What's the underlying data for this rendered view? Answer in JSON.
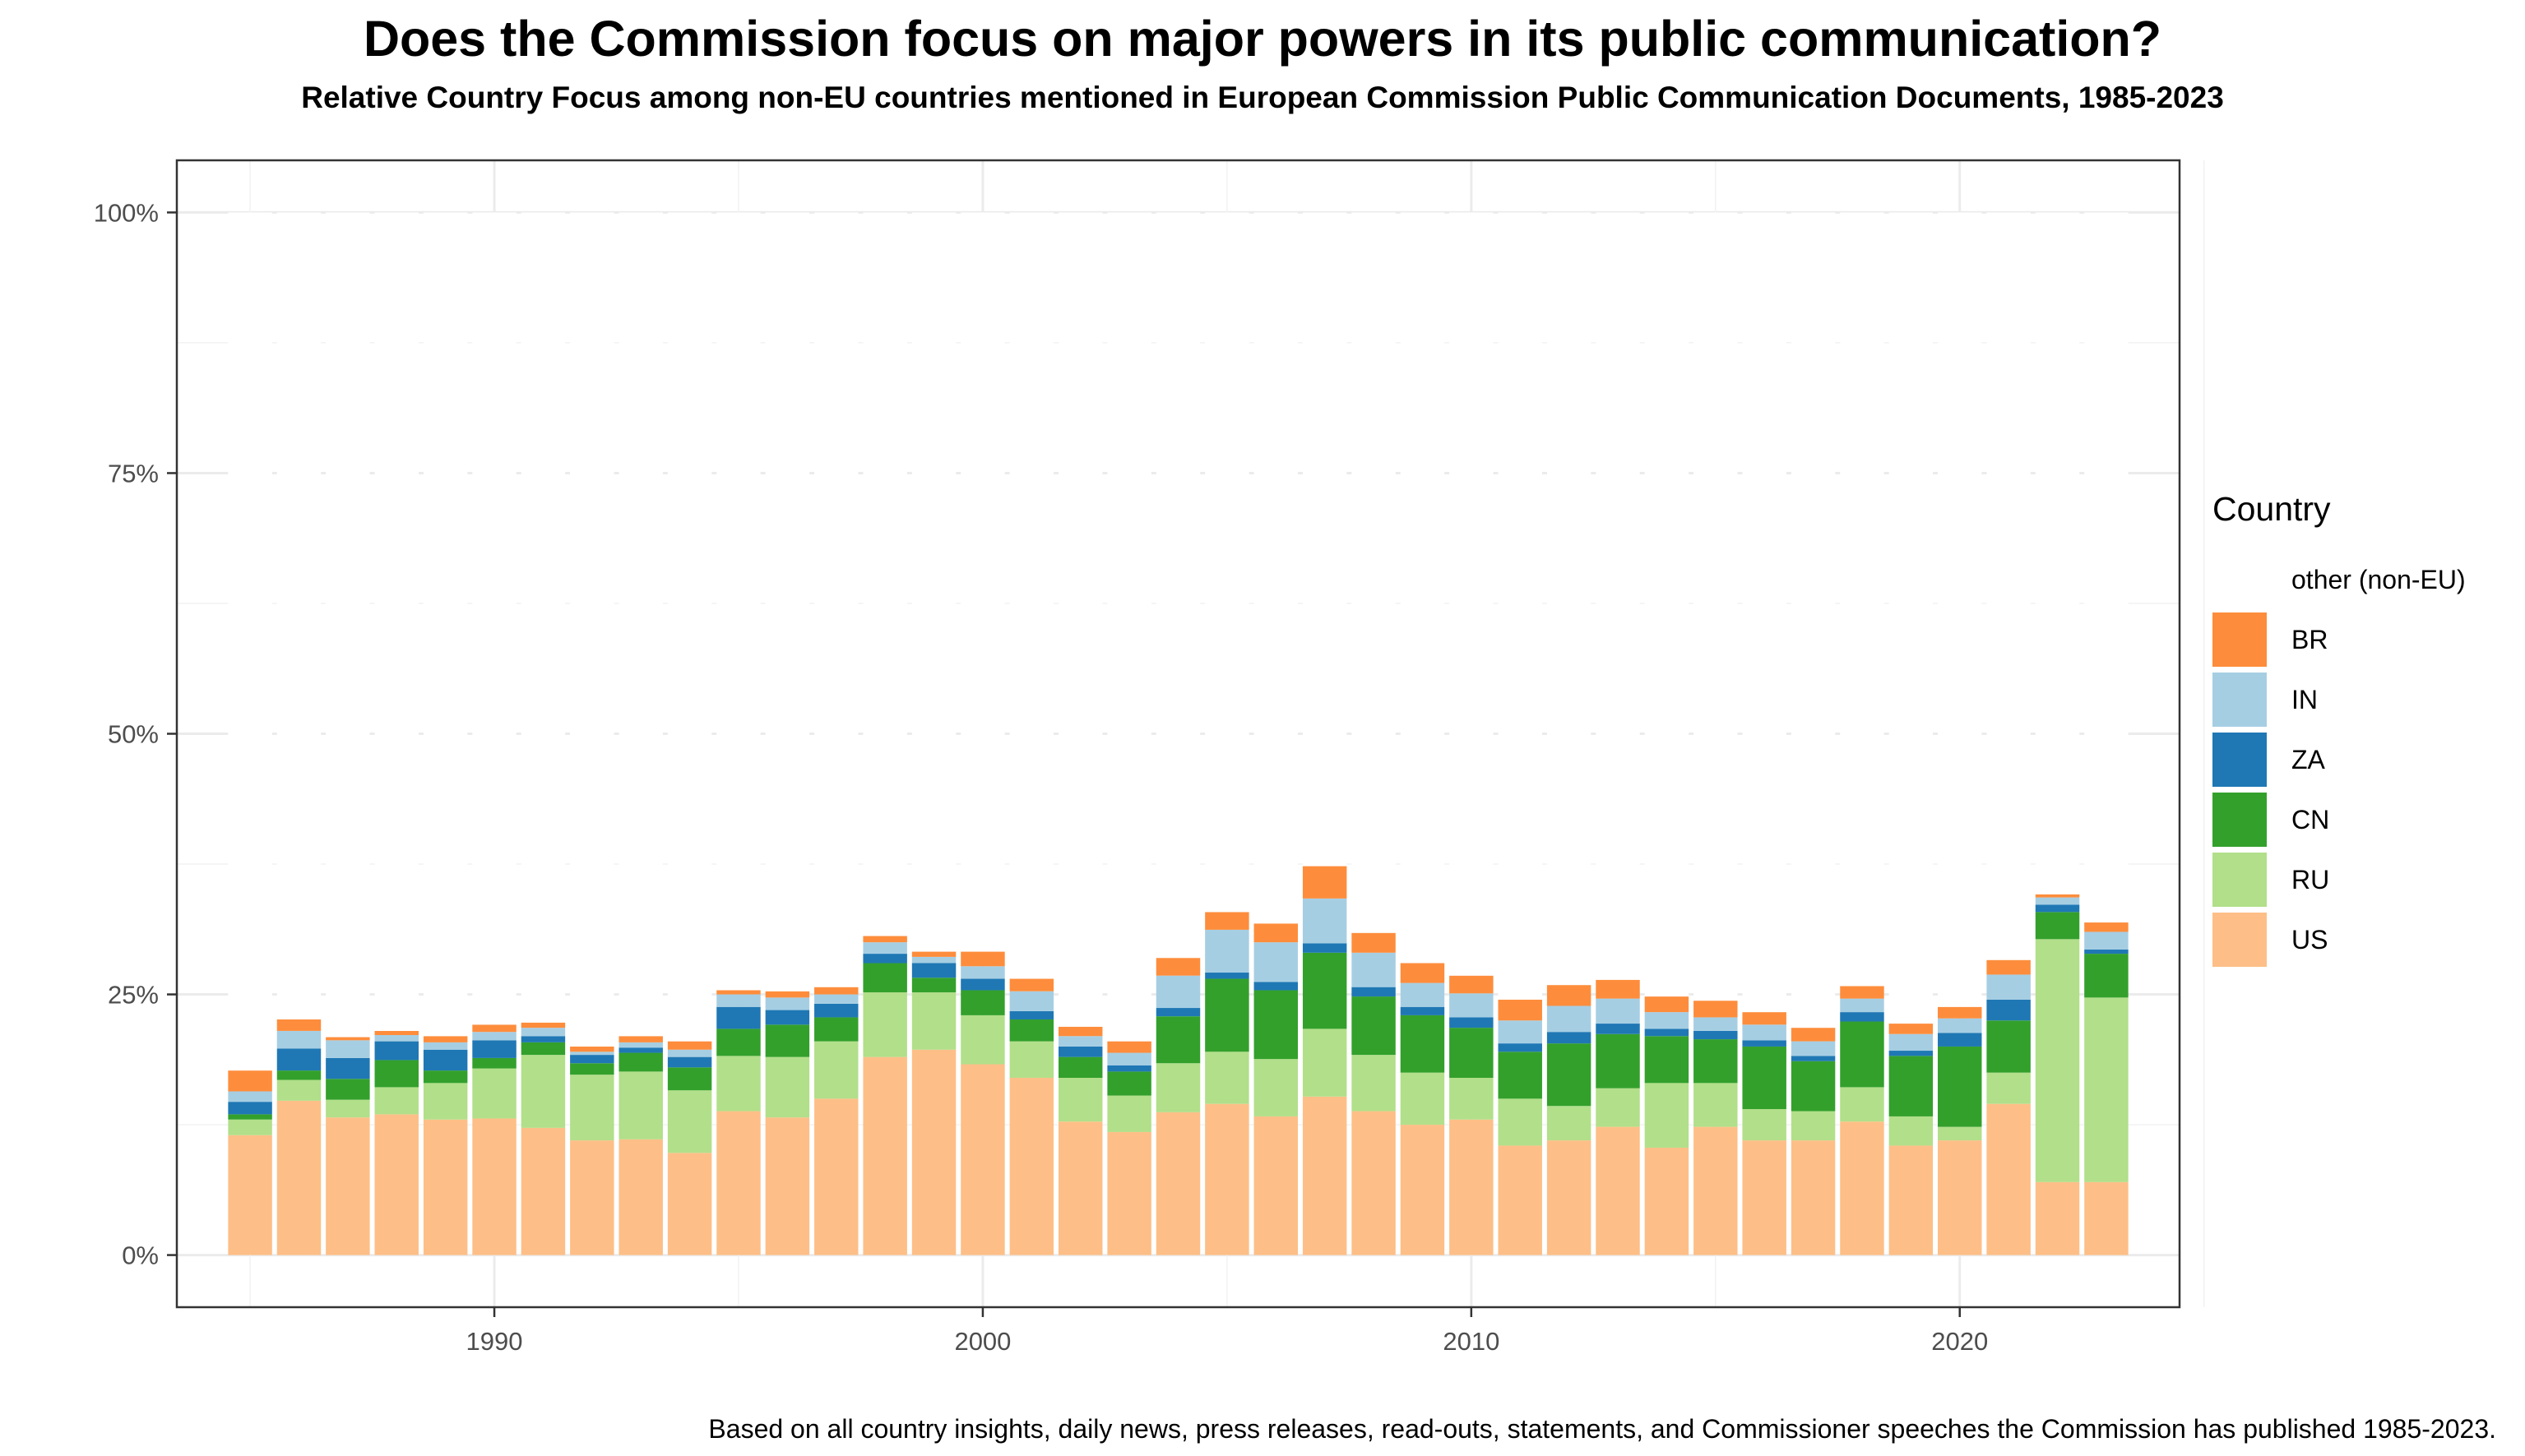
{
  "header": {
    "title": "Does the Commission focus on major powers in its public communication?",
    "subtitle": "Relative Country Focus among non-EU countries mentioned in European Commission Public Communication Documents, 1985-2023"
  },
  "footer": {
    "caption": "Based on all country insights, daily news, press releases, read-outs, statements, and Commissioner speeches the Commission has published 1985-2023."
  },
  "legend": {
    "title": "Country",
    "entries": [
      {
        "key": "other",
        "label": "other (non-EU)",
        "color": "#ffffff"
      },
      {
        "key": "BR",
        "label": "BR",
        "color": "#fd8d3c"
      },
      {
        "key": "IN",
        "label": "IN",
        "color": "#a6cee3"
      },
      {
        "key": "ZA",
        "label": "ZA",
        "color": "#1f78b4"
      },
      {
        "key": "CN",
        "label": "CN",
        "color": "#33a02c"
      },
      {
        "key": "RU",
        "label": "RU",
        "color": "#b2df8a"
      },
      {
        "key": "US",
        "label": "US",
        "color": "#fdbf87"
      }
    ]
  },
  "chart_data": {
    "type": "bar",
    "stacked": true,
    "title": "Does the Commission focus on major powers in its public communication?",
    "subtitle": "Relative Country Focus among non-EU countries mentioned in European Commission Public Communication Documents, 1985-2023",
    "xlabel": "",
    "ylabel": "",
    "xlim": [
      1983.5,
      2024.5
    ],
    "ylim": [
      -0.05,
      1.05
    ],
    "x_ticks": [
      1990,
      2000,
      2010,
      2020
    ],
    "x_tick_labels": [
      "1990",
      "2000",
      "2010",
      "2020"
    ],
    "y_ticks": [
      0,
      0.25,
      0.5,
      0.75,
      1.0
    ],
    "y_tick_labels": [
      "0%",
      "25%",
      "50%",
      "75%",
      "100%"
    ],
    "grid": true,
    "legend_position": "right",
    "categories": [
      1985,
      1986,
      1987,
      1988,
      1989,
      1990,
      1991,
      1992,
      1993,
      1994,
      1995,
      1996,
      1997,
      1998,
      1999,
      2000,
      2001,
      2002,
      2003,
      2004,
      2005,
      2006,
      2007,
      2008,
      2009,
      2010,
      2011,
      2012,
      2013,
      2014,
      2015,
      2016,
      2017,
      2018,
      2019,
      2020,
      2021,
      2022,
      2023
    ],
    "series": [
      {
        "name": "US",
        "values": [
          0.115,
          0.148,
          0.132,
          0.135,
          0.13,
          0.131,
          0.122,
          0.11,
          0.111,
          0.098,
          0.138,
          0.132,
          0.15,
          0.19,
          0.197,
          0.183,
          0.17,
          0.128,
          0.118,
          0.137,
          0.145,
          0.133,
          0.152,
          0.138,
          0.125,
          0.13,
          0.105,
          0.11,
          0.123,
          0.103,
          0.123,
          0.11,
          0.11,
          0.128,
          0.105,
          0.11,
          0.145,
          0.07,
          0.07
        ]
      },
      {
        "name": "RU",
        "values": [
          0.015,
          0.02,
          0.017,
          0.026,
          0.035,
          0.048,
          0.07,
          0.063,
          0.065,
          0.06,
          0.053,
          0.058,
          0.055,
          0.062,
          0.055,
          0.047,
          0.035,
          0.042,
          0.035,
          0.047,
          0.05,
          0.055,
          0.065,
          0.054,
          0.05,
          0.04,
          0.045,
          0.033,
          0.037,
          0.062,
          0.042,
          0.03,
          0.028,
          0.033,
          0.028,
          0.013,
          0.03,
          0.233,
          0.177
        ]
      },
      {
        "name": "CN",
        "values": [
          0.005,
          0.009,
          0.02,
          0.026,
          0.012,
          0.01,
          0.012,
          0.011,
          0.018,
          0.022,
          0.026,
          0.031,
          0.023,
          0.028,
          0.014,
          0.024,
          0.021,
          0.02,
          0.023,
          0.045,
          0.07,
          0.066,
          0.073,
          0.056,
          0.055,
          0.048,
          0.045,
          0.06,
          0.052,
          0.045,
          0.042,
          0.06,
          0.048,
          0.063,
          0.058,
          0.077,
          0.05,
          0.026,
          0.042
        ]
      },
      {
        "name": "ZA",
        "values": [
          0.012,
          0.021,
          0.02,
          0.018,
          0.02,
          0.017,
          0.006,
          0.008,
          0.005,
          0.01,
          0.021,
          0.014,
          0.013,
          0.009,
          0.014,
          0.011,
          0.008,
          0.01,
          0.006,
          0.008,
          0.006,
          0.008,
          0.009,
          0.009,
          0.008,
          0.01,
          0.008,
          0.011,
          0.01,
          0.007,
          0.008,
          0.006,
          0.005,
          0.009,
          0.005,
          0.013,
          0.02,
          0.007,
          0.004
        ]
      },
      {
        "name": "IN",
        "values": [
          0.01,
          0.017,
          0.017,
          0.006,
          0.007,
          0.008,
          0.008,
          0.003,
          0.005,
          0.007,
          0.012,
          0.012,
          0.009,
          0.011,
          0.006,
          0.012,
          0.019,
          0.01,
          0.012,
          0.031,
          0.041,
          0.038,
          0.043,
          0.033,
          0.023,
          0.023,
          0.022,
          0.025,
          0.024,
          0.016,
          0.013,
          0.015,
          0.014,
          0.013,
          0.016,
          0.014,
          0.024,
          0.007,
          0.017
        ]
      },
      {
        "name": "BR",
        "values": [
          0.02,
          0.011,
          0.003,
          0.004,
          0.006,
          0.007,
          0.005,
          0.005,
          0.006,
          0.008,
          0.004,
          0.006,
          0.007,
          0.006,
          0.005,
          0.014,
          0.012,
          0.009,
          0.011,
          0.017,
          0.017,
          0.018,
          0.031,
          0.019,
          0.019,
          0.017,
          0.02,
          0.02,
          0.018,
          0.015,
          0.016,
          0.012,
          0.013,
          0.012,
          0.01,
          0.011,
          0.014,
          0.003,
          0.009
        ]
      },
      {
        "name": "other (non-EU)",
        "values": [
          0.823,
          0.774,
          0.791,
          0.785,
          0.79,
          0.779,
          0.777,
          0.8,
          0.79,
          0.795,
          0.746,
          0.747,
          0.743,
          0.694,
          0.709,
          0.709,
          0.735,
          0.781,
          0.795,
          0.715,
          0.671,
          0.682,
          0.627,
          0.691,
          0.72,
          0.732,
          0.755,
          0.741,
          0.736,
          0.752,
          0.756,
          0.767,
          0.782,
          0.742,
          0.778,
          0.762,
          0.717,
          0.654,
          0.681
        ]
      }
    ]
  }
}
